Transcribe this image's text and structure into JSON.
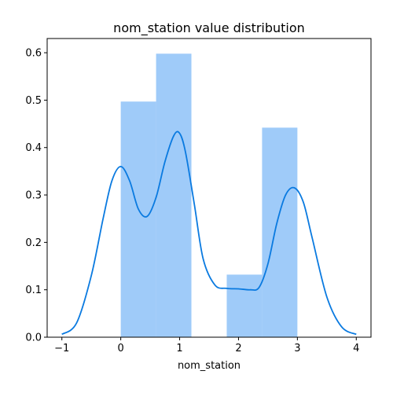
{
  "chart_data": {
    "type": "bar",
    "title": "nom_station value distribution",
    "xlabel": "nom_station",
    "ylabel": "",
    "xlim": [
      -1.25,
      4.25
    ],
    "ylim": [
      0,
      0.63
    ],
    "x_ticks": [
      -1,
      0,
      1,
      2,
      3,
      4
    ],
    "y_ticks": [
      0.0,
      0.1,
      0.2,
      0.3,
      0.4,
      0.5,
      0.6
    ],
    "x_tick_labels": [
      "−1",
      "0",
      "1",
      "2",
      "3",
      "4"
    ],
    "y_tick_labels": [
      "0.0",
      "0.1",
      "0.2",
      "0.3",
      "0.4",
      "0.5",
      "0.6"
    ],
    "grid": false,
    "histogram": {
      "bins": [
        {
          "x0": 0.0,
          "x1": 0.6,
          "value": 0.497
        },
        {
          "x0": 0.6,
          "x1": 1.2,
          "value": 0.598
        },
        {
          "x0": 1.2,
          "x1": 1.8,
          "value": 0.0
        },
        {
          "x0": 1.8,
          "x1": 2.4,
          "value": 0.132
        },
        {
          "x0": 2.4,
          "x1": 3.0,
          "value": 0.442
        }
      ],
      "color": "#9fcbf9"
    },
    "kde": {
      "color": "#0a7ae0",
      "x": [
        -1.0,
        -0.75,
        -0.5,
        -0.3,
        -0.15,
        0.0,
        0.15,
        0.3,
        0.45,
        0.6,
        0.75,
        0.9,
        1.0,
        1.1,
        1.25,
        1.4,
        1.6,
        1.8,
        2.0,
        2.2,
        2.35,
        2.5,
        2.65,
        2.8,
        2.95,
        3.1,
        3.25,
        3.5,
        3.75,
        4.0
      ],
      "y": [
        0.006,
        0.03,
        0.13,
        0.25,
        0.33,
        0.36,
        0.33,
        0.27,
        0.255,
        0.295,
        0.37,
        0.425,
        0.43,
        0.39,
        0.28,
        0.165,
        0.11,
        0.103,
        0.102,
        0.1,
        0.105,
        0.155,
        0.24,
        0.3,
        0.315,
        0.285,
        0.21,
        0.085,
        0.022,
        0.006
      ]
    }
  }
}
